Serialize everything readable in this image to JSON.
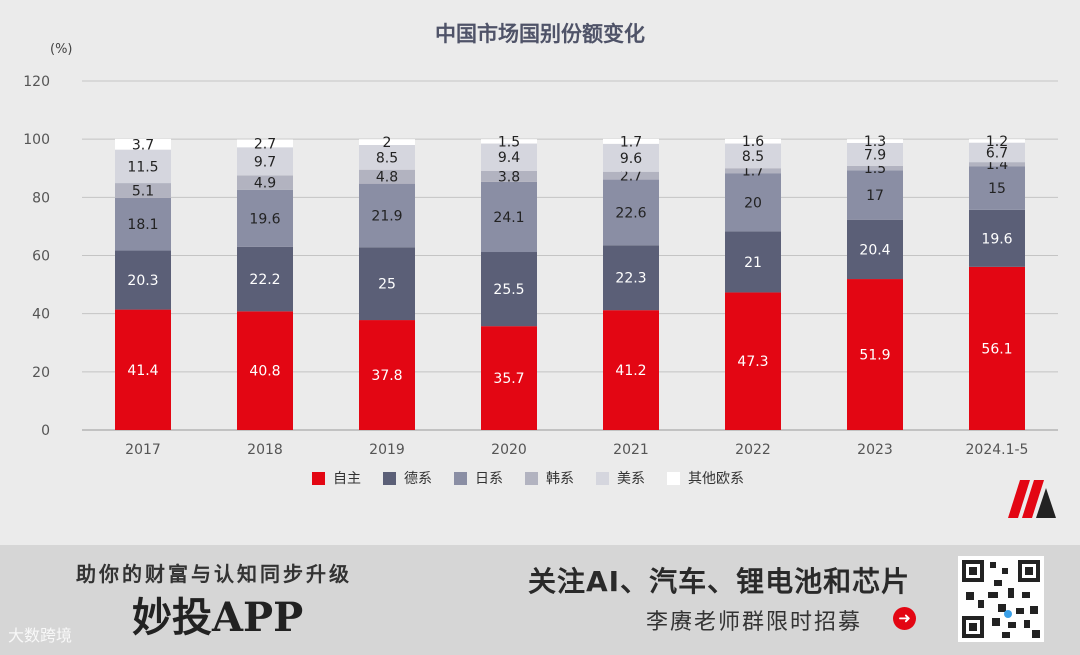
{
  "title": "中国市场国别份额变化",
  "unit": "(%)",
  "chart_data": {
    "type": "bar",
    "stacked": true,
    "title": "中国市场国别份额变化",
    "ylabel": "(%)",
    "ylim": [
      0,
      120
    ],
    "yticks": [
      0,
      20,
      40,
      60,
      80,
      100,
      120
    ],
    "grid": true,
    "legend_position": "bottom",
    "categories": [
      "2017",
      "2018",
      "2019",
      "2020",
      "2021",
      "2022",
      "2023",
      "2024.1-5"
    ],
    "series": [
      {
        "name": "自主",
        "color": "#e30613",
        "label_color": "#ffffff",
        "values": [
          41.4,
          40.8,
          37.8,
          35.7,
          41.2,
          47.3,
          51.9,
          56.1
        ]
      },
      {
        "name": "德系",
        "color": "#5b5f77",
        "label_color": "#ffffff",
        "values": [
          20.3,
          22.2,
          25,
          25.5,
          22.3,
          21,
          20.4,
          19.6
        ]
      },
      {
        "name": "日系",
        "color": "#8a8ea4",
        "label_color": "#222222",
        "values": [
          18.1,
          19.6,
          21.9,
          24.1,
          22.6,
          20,
          17,
          15
        ]
      },
      {
        "name": "韩系",
        "color": "#b2b3c0",
        "label_color": "#222222",
        "values": [
          5.1,
          4.9,
          4.8,
          3.8,
          2.7,
          1.7,
          1.5,
          1.4
        ]
      },
      {
        "name": "美系",
        "color": "#d5d6de",
        "label_color": "#222222",
        "values": [
          11.5,
          9.7,
          8.5,
          9.4,
          9.6,
          8.5,
          7.9,
          6.7
        ]
      },
      {
        "name": "其他欧系",
        "color": "#ffffff",
        "label_color": "#222222",
        "values": [
          3.7,
          2.7,
          2,
          1.5,
          1.7,
          1.6,
          1.3,
          1.2
        ]
      }
    ]
  },
  "banner": {
    "slogan": "助你的财富与认知同步升级",
    "app_name": "妙投APP",
    "promo_line1": "关注AI、汽车、锂电池和芯片",
    "promo_line2": "李赓老师群限时招募",
    "arrow_icon": "arrow-right-circle-icon",
    "qr_icon": "qr-code-icon",
    "watermark": "大数跨境"
  }
}
